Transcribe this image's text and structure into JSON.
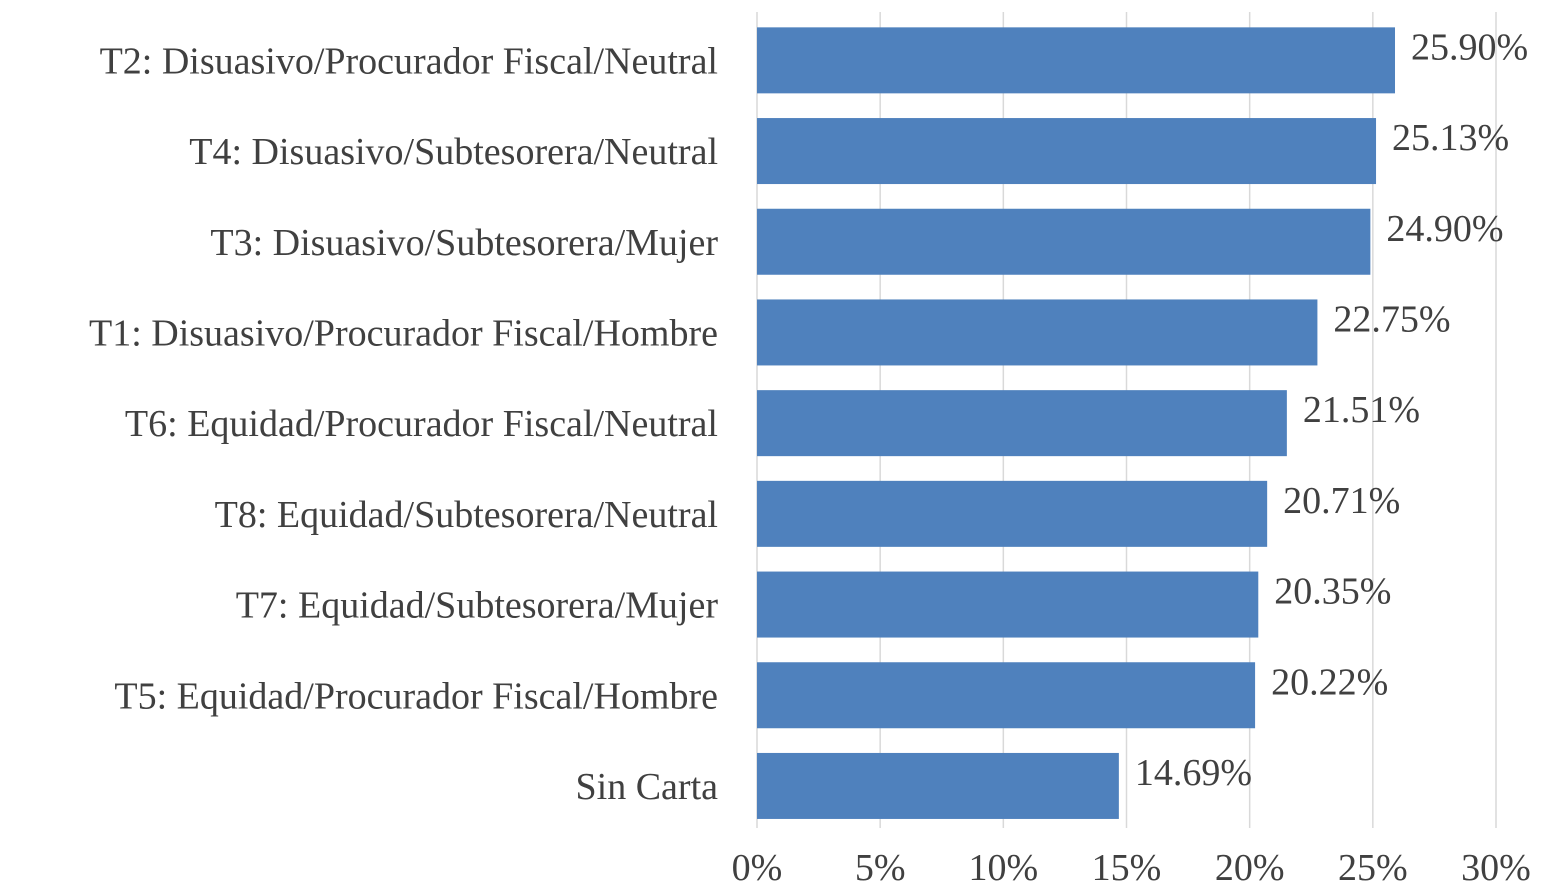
{
  "chart_data": {
    "type": "bar",
    "orientation": "horizontal",
    "categories": [
      "T2: Disuasivo/Procurador Fiscal/Neutral",
      "T4: Disuasivo/Subtesorera/Neutral",
      "T3: Disuasivo/Subtesorera/Mujer",
      "T1: Disuasivo/Procurador Fiscal/Hombre",
      "T6: Equidad/Procurador Fiscal/Neutral",
      "T8: Equidad/Subtesorera/Neutral",
      "T7: Equidad/Subtesorera/Mujer",
      "T5: Equidad/Procurador Fiscal/Hombre",
      "Sin Carta"
    ],
    "values": [
      25.9,
      25.13,
      24.9,
      22.75,
      21.51,
      20.71,
      20.35,
      20.22,
      14.69
    ],
    "data_labels": [
      "25.90%",
      "25.13%",
      "24.90%",
      "22.75%",
      "21.51%",
      "20.71%",
      "20.35%",
      "20.22%",
      "14.69%"
    ],
    "title": "",
    "xlabel": "",
    "ylabel": "",
    "xlim": [
      0,
      30
    ],
    "x_ticks": [
      0,
      5,
      10,
      15,
      20,
      25,
      30
    ],
    "x_tick_labels": [
      "0%",
      "5%",
      "10%",
      "15%",
      "20%",
      "25%",
      "30%"
    ],
    "grid": "vertical",
    "legend": "none",
    "colors": {
      "bar": "#4f81bd",
      "grid": "#d9d9d9",
      "text": "#404040"
    }
  }
}
